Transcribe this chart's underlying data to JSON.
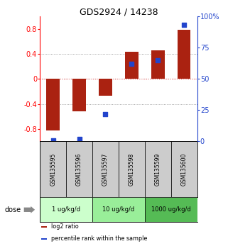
{
  "title": "GDS2924 / 14238",
  "samples": [
    "GSM135595",
    "GSM135596",
    "GSM135597",
    "GSM135598",
    "GSM135599",
    "GSM135600"
  ],
  "log2_ratio": [
    -0.82,
    -0.52,
    -0.27,
    0.43,
    0.46,
    0.79
  ],
  "percentile_rank": [
    1,
    2,
    22,
    62,
    65,
    93
  ],
  "bar_color": "#aa2211",
  "dot_color": "#2244cc",
  "ylim_left": [
    -1.0,
    1.0
  ],
  "ylim_right": [
    0,
    100
  ],
  "yticks_left": [
    -0.8,
    -0.4,
    0.0,
    0.4,
    0.8
  ],
  "yticks_right": [
    0,
    25,
    50,
    75,
    100
  ],
  "ytick_right_labels": [
    "0",
    "25",
    "50",
    "75",
    "100%"
  ],
  "dose_groups": [
    {
      "label": "1 ug/kg/d",
      "start": 0,
      "end": 1,
      "color": "#ccffcc"
    },
    {
      "label": "10 ug/kg/d",
      "start": 2,
      "end": 3,
      "color": "#99ee99"
    },
    {
      "label": "1000 ug/kg/d",
      "start": 4,
      "end": 5,
      "color": "#55bb55"
    }
  ],
  "legend_items": [
    {
      "label": "log2 ratio",
      "color": "#aa2211"
    },
    {
      "label": "percentile rank within the sample",
      "color": "#2244cc"
    }
  ],
  "hline_zero_color": "#cc2222",
  "hline_dotted_color": "#888888",
  "bar_width": 0.5,
  "dot_size": 18,
  "dose_label": "dose"
}
